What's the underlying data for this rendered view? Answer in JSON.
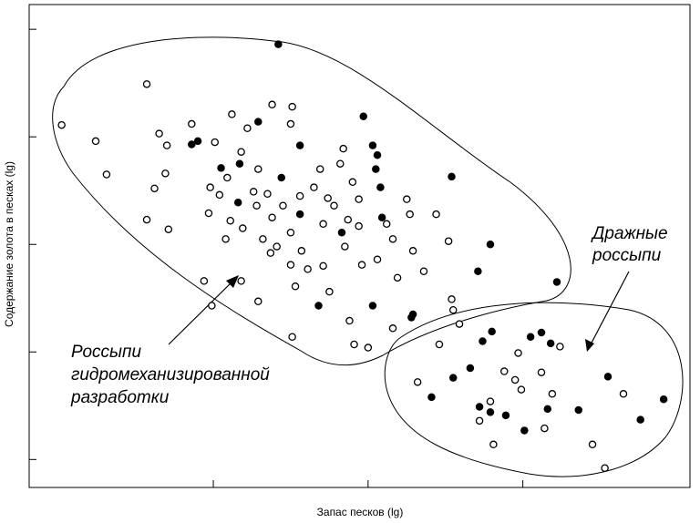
{
  "chart_data": {
    "type": "scatter",
    "x_label": "Запас песков (lg)",
    "y_label": "Содержание золота в песках (lg)",
    "annotations": [
      "Россыпи",
      "гидромеханизированной",
      "разработки",
      "Дражные",
      "россыпи"
    ],
    "xlim": [
      -0.19,
      4.08
    ],
    "ylim": [
      -0.26,
      4.23
    ],
    "xticks": [
      1,
      2,
      3
    ],
    "yticks": [
      0,
      1,
      2,
      3,
      4
    ],
    "series": [
      {
        "color": "#000000",
        "filled": false,
        "x": [
          0.02,
          0.24,
          0.31,
          0.57,
          0.65,
          0.7,
          0.69,
          0.62,
          0.57,
          0.71,
          0.86,
          1.01,
          1.12,
          1.22,
          1.38,
          1.5,
          1.51,
          1.18,
          1.09,
          0.98,
          1.04,
          0.97,
          1.11,
          1.19,
          1.08,
          1.29,
          1.35,
          1.28,
          1.38,
          1.32,
          1.41,
          1.5,
          1.37,
          1.5,
          1.57,
          1.61,
          1.71,
          1.56,
          1.65,
          1.69,
          1.74,
          1.84,
          1.82,
          1.9,
          1.78,
          1.71,
          1.87,
          1.85,
          1.94,
          1.96,
          2.06,
          2.16,
          2.12,
          2.25,
          2.27,
          2.29,
          2.19,
          2.36,
          2.44,
          2.52,
          2.54,
          2.55,
          1.18,
          0.94,
          1.29,
          1.53,
          0.99,
          1.88,
          2.16,
          1.91,
          2.0,
          1.51,
          1.75,
          1.94,
          1.45,
          1.26,
          2.46,
          2.59,
          2.32,
          2.79,
          2.72,
          2.81,
          2.97,
          3.12,
          2.95,
          2.99,
          3.19,
          3.24,
          3.14,
          3.45,
          3.53,
          3.65,
          2.88
        ],
        "y": [
          3.11,
          2.96,
          2.65,
          3.49,
          3.03,
          2.92,
          2.66,
          2.52,
          2.23,
          2.14,
          3.12,
          2.95,
          3.21,
          3.08,
          3.3,
          3.12,
          3.28,
          2.86,
          2.62,
          2.53,
          2.46,
          2.29,
          2.22,
          2.15,
          2.05,
          2.7,
          2.47,
          2.36,
          2.25,
          2.05,
          1.98,
          2.11,
          1.92,
          1.81,
          1.94,
          1.77,
          1.8,
          2.45,
          2.53,
          2.7,
          2.43,
          2.89,
          2.75,
          2.58,
          2.36,
          2.19,
          2.23,
          1.98,
          2.17,
          1.81,
          1.86,
          2.05,
          2.19,
          2.42,
          2.28,
          1.94,
          1.69,
          1.75,
          2.28,
          2.03,
          1.49,
          1.39,
          1.66,
          1.66,
          1.47,
          1.61,
          1.43,
          1.29,
          1.22,
          1.07,
          1.04,
          1.14,
          1.56,
          2.42,
          2.36,
          2.49,
          1.07,
          1.26,
          0.72,
          0.54,
          0.36,
          0.14,
          0.99,
          0.81,
          0.74,
          0.65,
          0.61,
          1.05,
          0.29,
          0.14,
          -0.08,
          0.61,
          0.82
        ]
      },
      {
        "color": "#000000",
        "filled": true,
        "x": [
          1.42,
          0.86,
          0.9,
          1.29,
          1.17,
          1.05,
          1.56,
          1.97,
          2.03,
          2.06,
          2.05,
          2.08,
          2.54,
          1.44,
          1.16,
          1.56,
          1.83,
          2.09,
          2.79,
          2.71,
          1.68,
          2.03,
          2.29,
          3.22,
          2.8,
          3.05,
          3.12,
          3.18,
          2.74,
          2.66,
          2.55,
          2.41,
          2.72,
          2.79,
          2.89,
          3.01,
          3.16,
          3.36,
          3.55,
          3.76,
          3.91,
          2.28
        ],
        "y": [
          3.86,
          2.93,
          2.96,
          3.14,
          2.75,
          2.71,
          2.92,
          3.19,
          2.92,
          2.83,
          2.7,
          2.53,
          2.63,
          2.62,
          2.39,
          2.28,
          2.11,
          2.25,
          2.0,
          1.75,
          1.43,
          1.43,
          1.35,
          1.65,
          1.19,
          1.14,
          1.18,
          1.08,
          1.1,
          0.85,
          0.76,
          0.58,
          0.49,
          0.44,
          0.41,
          0.27,
          0.47,
          0.46,
          0.77,
          0.37,
          0.56,
          1.32
        ]
      }
    ]
  }
}
